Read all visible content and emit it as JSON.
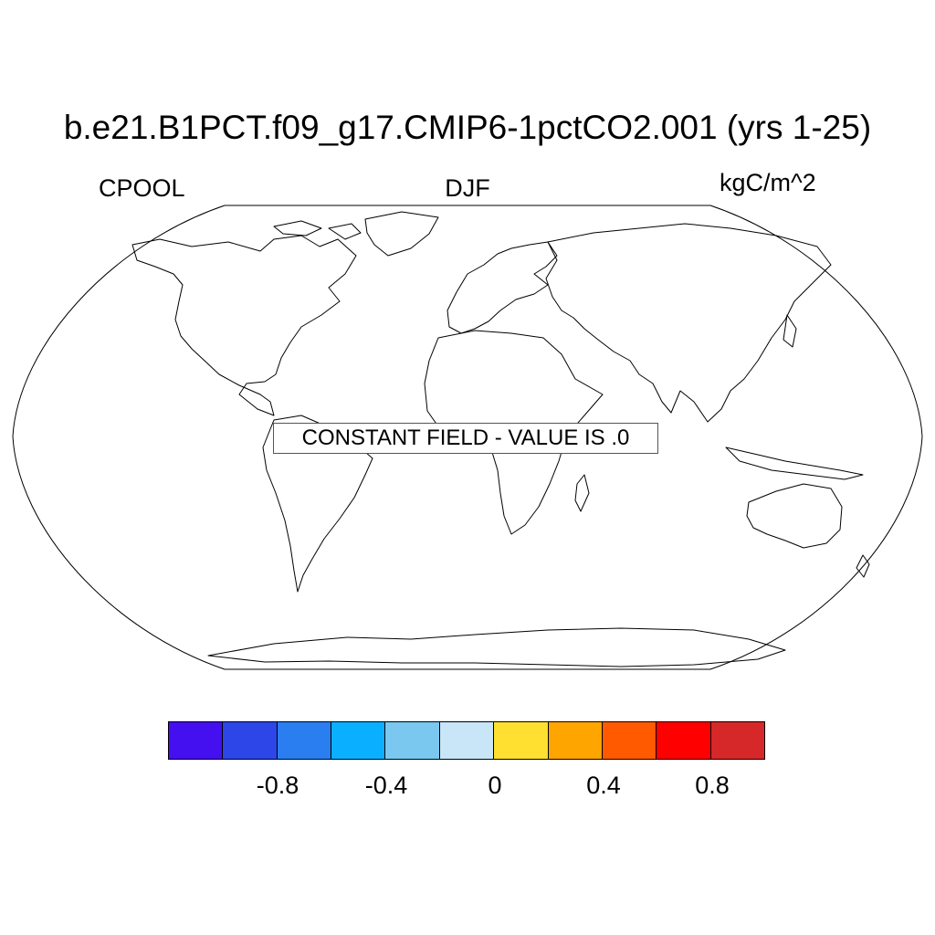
{
  "title": "b.e21.B1PCT.f09_g17.CMIP6-1pctCO2.001 (yrs 1-25)",
  "variable": "CPOOL",
  "season": "DJF",
  "units": "kgC/m^2",
  "message": "CONSTANT FIELD - VALUE IS .0",
  "colorbar": {
    "colors": [
      "#4410f0",
      "#2c46e8",
      "#2a7ef0",
      "#0ab0ff",
      "#7ac8f0",
      "#c8e6f8",
      "#ffe030",
      "#ffa500",
      "#ff5a00",
      "#ff0000",
      "#d62828"
    ],
    "ticks": [
      "-0.8",
      "-0.4",
      "0",
      "0.4",
      "0.8"
    ]
  }
}
